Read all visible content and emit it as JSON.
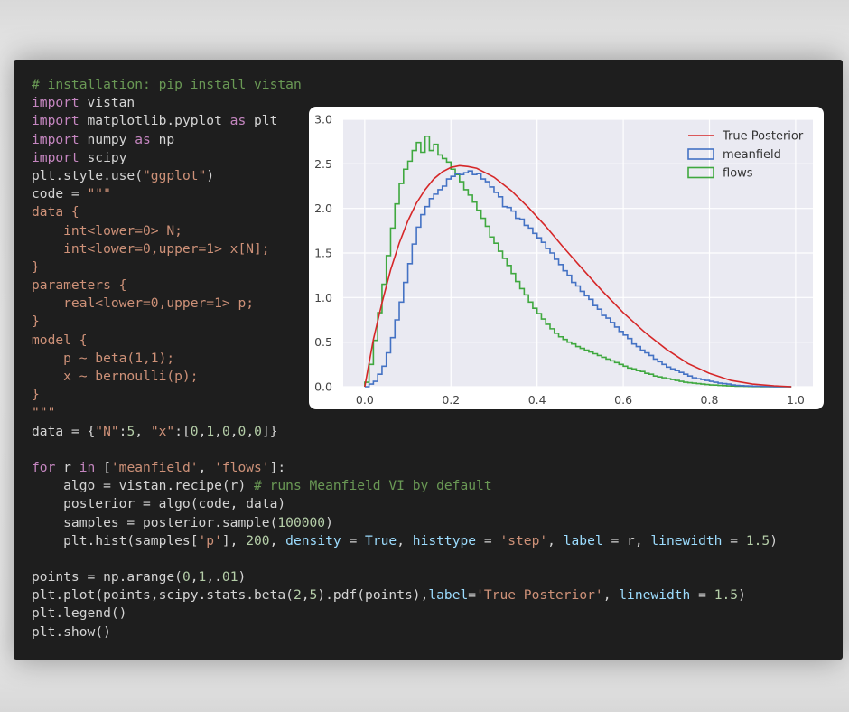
{
  "code_lines": [
    [
      [
        "c",
        "# installation: pip install vistan"
      ]
    ],
    [
      [
        "k",
        "import"
      ],
      [
        "t",
        " vistan"
      ]
    ],
    [
      [
        "k",
        "import"
      ],
      [
        "t",
        " matplotlib.pyplot "
      ],
      [
        "k",
        "as"
      ],
      [
        "t",
        " plt"
      ]
    ],
    [
      [
        "k",
        "import"
      ],
      [
        "t",
        " numpy "
      ],
      [
        "k",
        "as"
      ],
      [
        "t",
        " np"
      ]
    ],
    [
      [
        "k",
        "import"
      ],
      [
        "t",
        " scipy"
      ]
    ],
    [
      [
        "t",
        "plt.style.use("
      ],
      [
        "s",
        "\"ggplot\""
      ],
      [
        "t",
        ")"
      ]
    ],
    [
      [
        "t",
        "code = "
      ],
      [
        "s",
        "\"\"\""
      ]
    ],
    [
      [
        "s",
        "data {"
      ]
    ],
    [
      [
        "s",
        "    int<lower=0> N;"
      ]
    ],
    [
      [
        "s",
        "    int<lower=0,upper=1> x[N];"
      ]
    ],
    [
      [
        "s",
        "}"
      ]
    ],
    [
      [
        "s",
        "parameters {"
      ]
    ],
    [
      [
        "s",
        "    real<lower=0,upper=1> p;"
      ]
    ],
    [
      [
        "s",
        "}"
      ]
    ],
    [
      [
        "s",
        "model {"
      ]
    ],
    [
      [
        "s",
        "    p ~ beta(1,1);"
      ]
    ],
    [
      [
        "s",
        "    x ~ bernoulli(p);"
      ]
    ],
    [
      [
        "s",
        "}"
      ]
    ],
    [
      [
        "s",
        "\"\"\""
      ]
    ],
    [
      [
        "t",
        "data = {"
      ],
      [
        "s",
        "\"N\""
      ],
      [
        "t",
        ":"
      ],
      [
        "n",
        "5"
      ],
      [
        "t",
        ", "
      ],
      [
        "s",
        "\"x\""
      ],
      [
        "t",
        ":["
      ],
      [
        "n",
        "0"
      ],
      [
        "t",
        ","
      ],
      [
        "n",
        "1"
      ],
      [
        "t",
        ","
      ],
      [
        "n",
        "0"
      ],
      [
        "t",
        ","
      ],
      [
        "n",
        "0"
      ],
      [
        "t",
        ","
      ],
      [
        "n",
        "0"
      ],
      [
        "t",
        "]}"
      ]
    ],
    [
      [
        "t",
        ""
      ]
    ],
    [
      [
        "k",
        "for"
      ],
      [
        "t",
        " r "
      ],
      [
        "k",
        "in"
      ],
      [
        "t",
        " ["
      ],
      [
        "s",
        "'meanfield'"
      ],
      [
        "t",
        ", "
      ],
      [
        "s",
        "'flows'"
      ],
      [
        "t",
        "]:"
      ]
    ],
    [
      [
        "t",
        "    algo = vistan.recipe(r) "
      ],
      [
        "c",
        "# runs Meanfield VI by default"
      ]
    ],
    [
      [
        "t",
        "    posterior = algo(code, data)"
      ]
    ],
    [
      [
        "t",
        "    samples = posterior.sample("
      ],
      [
        "n",
        "100000"
      ],
      [
        "t",
        ")"
      ]
    ],
    [
      [
        "t",
        "    plt.hist(samples["
      ],
      [
        "s",
        "'p'"
      ],
      [
        "t",
        "], "
      ],
      [
        "n",
        "200"
      ],
      [
        "t",
        ", "
      ],
      [
        "p",
        "density"
      ],
      [
        "t",
        " = "
      ],
      [
        "p",
        "True"
      ],
      [
        "t",
        ", "
      ],
      [
        "p",
        "histtype"
      ],
      [
        "t",
        " = "
      ],
      [
        "s",
        "'step'"
      ],
      [
        "t",
        ", "
      ],
      [
        "p",
        "label"
      ],
      [
        "t",
        " = r, "
      ],
      [
        "p",
        "linewidth"
      ],
      [
        "t",
        " = "
      ],
      [
        "n",
        "1.5"
      ],
      [
        "t",
        ")"
      ]
    ],
    [
      [
        "t",
        ""
      ]
    ],
    [
      [
        "t",
        "points = np.arange("
      ],
      [
        "n",
        "0"
      ],
      [
        "t",
        ","
      ],
      [
        "n",
        "1"
      ],
      [
        "t",
        ",."
      ],
      [
        "n",
        "01"
      ],
      [
        "t",
        ")"
      ]
    ],
    [
      [
        "t",
        "plt.plot(points,scipy.stats.beta("
      ],
      [
        "n",
        "2"
      ],
      [
        "t",
        ","
      ],
      [
        "n",
        "5"
      ],
      [
        "t",
        ").pdf(points),"
      ],
      [
        "p",
        "label"
      ],
      [
        "t",
        "="
      ],
      [
        "s",
        "'True Posterior'"
      ],
      [
        "t",
        ", "
      ],
      [
        "p",
        "linewidth"
      ],
      [
        "t",
        " = "
      ],
      [
        "n",
        "1.5"
      ],
      [
        "t",
        ")"
      ]
    ],
    [
      [
        "t",
        "plt.legend()"
      ]
    ],
    [
      [
        "t",
        "plt.show()"
      ]
    ]
  ],
  "chart_data": {
    "type": "line",
    "x_ticks": [
      "0.0",
      "0.2",
      "0.4",
      "0.6",
      "0.8",
      "1.0"
    ],
    "y_ticks": [
      "0.0",
      "0.5",
      "1.0",
      "1.5",
      "2.0",
      "2.5",
      "3.0"
    ],
    "xlim": [
      -0.05,
      1.04
    ],
    "ylim": [
      0,
      3.0
    ],
    "grid": true,
    "legend_position": "top-right",
    "series": [
      {
        "name": "True Posterior",
        "style": "line",
        "color": "#d62728",
        "x": [
          0,
          0.02,
          0.04,
          0.06,
          0.08,
          0.1,
          0.12,
          0.14,
          0.16,
          0.18,
          0.2,
          0.22,
          0.24,
          0.26,
          0.28,
          0.3,
          0.34,
          0.38,
          0.42,
          0.46,
          0.5,
          0.55,
          0.6,
          0.65,
          0.7,
          0.75,
          0.8,
          0.85,
          0.9,
          0.95,
          0.99
        ],
        "y": [
          0,
          0.53,
          0.94,
          1.31,
          1.61,
          1.86,
          2.06,
          2.21,
          2.33,
          2.41,
          2.46,
          2.48,
          2.47,
          2.45,
          2.4,
          2.35,
          2.2,
          2.01,
          1.8,
          1.57,
          1.35,
          1.08,
          0.83,
          0.61,
          0.42,
          0.26,
          0.15,
          0.07,
          0.03,
          0.01,
          0.0
        ]
      },
      {
        "name": "meanfield",
        "style": "step",
        "color": "#4472c4",
        "x": [
          0.0,
          0.01,
          0.02,
          0.03,
          0.04,
          0.05,
          0.06,
          0.07,
          0.08,
          0.09,
          0.1,
          0.11,
          0.12,
          0.13,
          0.14,
          0.15,
          0.16,
          0.17,
          0.18,
          0.19,
          0.2,
          0.21,
          0.22,
          0.23,
          0.24,
          0.25,
          0.26,
          0.27,
          0.28,
          0.29,
          0.3,
          0.31,
          0.32,
          0.33,
          0.34,
          0.35,
          0.36,
          0.37,
          0.38,
          0.39,
          0.4,
          0.41,
          0.42,
          0.43,
          0.44,
          0.45,
          0.46,
          0.47,
          0.48,
          0.49,
          0.5,
          0.51,
          0.52,
          0.53,
          0.54,
          0.55,
          0.56,
          0.57,
          0.58,
          0.59,
          0.6,
          0.61,
          0.62,
          0.63,
          0.64,
          0.65,
          0.66,
          0.67,
          0.68,
          0.69,
          0.7,
          0.71,
          0.72,
          0.73,
          0.74,
          0.75,
          0.76,
          0.77,
          0.78,
          0.79,
          0.8,
          0.81,
          0.82,
          0.83,
          0.84,
          0.85,
          0.86,
          0.87,
          0.88,
          0.89,
          0.9,
          0.91,
          0.92,
          0.93,
          0.94,
          0.95,
          0.96,
          0.97,
          0.98
        ],
        "y": [
          0.0,
          0.03,
          0.06,
          0.14,
          0.23,
          0.38,
          0.55,
          0.75,
          0.95,
          1.17,
          1.38,
          1.6,
          1.79,
          1.93,
          2.02,
          2.11,
          2.16,
          2.21,
          2.25,
          2.33,
          2.36,
          2.39,
          2.38,
          2.4,
          2.42,
          2.38,
          2.39,
          2.33,
          2.3,
          2.24,
          2.18,
          2.13,
          2.02,
          2.01,
          1.97,
          1.89,
          1.88,
          1.81,
          1.78,
          1.72,
          1.67,
          1.62,
          1.55,
          1.5,
          1.43,
          1.37,
          1.3,
          1.25,
          1.17,
          1.13,
          1.07,
          1.02,
          0.98,
          0.91,
          0.87,
          0.8,
          0.77,
          0.72,
          0.67,
          0.62,
          0.58,
          0.54,
          0.48,
          0.45,
          0.41,
          0.38,
          0.35,
          0.31,
          0.28,
          0.25,
          0.22,
          0.2,
          0.18,
          0.16,
          0.14,
          0.12,
          0.1,
          0.09,
          0.08,
          0.07,
          0.06,
          0.05,
          0.04,
          0.035,
          0.03,
          0.02,
          0.015,
          0.012,
          0.01,
          0.008,
          0.006,
          0.005,
          0.004,
          0.003,
          0.002,
          0.001,
          0.001,
          0.0005,
          0.0
        ]
      },
      {
        "name": "flows",
        "style": "step",
        "color": "#3fa83f",
        "x": [
          0.0,
          0.01,
          0.02,
          0.03,
          0.04,
          0.05,
          0.06,
          0.07,
          0.08,
          0.09,
          0.1,
          0.11,
          0.12,
          0.13,
          0.14,
          0.15,
          0.16,
          0.17,
          0.18,
          0.19,
          0.2,
          0.21,
          0.22,
          0.23,
          0.24,
          0.25,
          0.26,
          0.27,
          0.28,
          0.29,
          0.3,
          0.31,
          0.32,
          0.33,
          0.34,
          0.35,
          0.36,
          0.37,
          0.38,
          0.39,
          0.4,
          0.41,
          0.42,
          0.43,
          0.44,
          0.45,
          0.46,
          0.47,
          0.48,
          0.49,
          0.5,
          0.51,
          0.52,
          0.53,
          0.54,
          0.55,
          0.56,
          0.57,
          0.58,
          0.59,
          0.6,
          0.61,
          0.62,
          0.63,
          0.64,
          0.65,
          0.66,
          0.67,
          0.68,
          0.69,
          0.7,
          0.71,
          0.72,
          0.73,
          0.74,
          0.75,
          0.76,
          0.77,
          0.78,
          0.79,
          0.8,
          0.81,
          0.82,
          0.83,
          0.84,
          0.85,
          0.86,
          0.87,
          0.88,
          0.89,
          0.9,
          0.91,
          0.92,
          0.93,
          0.94,
          0.95,
          0.96,
          0.97,
          0.98
        ],
        "y": [
          0.05,
          0.25,
          0.52,
          0.83,
          1.15,
          1.47,
          1.78,
          2.05,
          2.28,
          2.44,
          2.53,
          2.65,
          2.74,
          2.63,
          2.81,
          2.65,
          2.72,
          2.6,
          2.56,
          2.52,
          2.44,
          2.38,
          2.3,
          2.21,
          2.15,
          2.07,
          1.98,
          1.89,
          1.8,
          1.68,
          1.61,
          1.52,
          1.44,
          1.36,
          1.27,
          1.18,
          1.1,
          1.03,
          0.95,
          0.88,
          0.82,
          0.76,
          0.7,
          0.65,
          0.6,
          0.56,
          0.53,
          0.5,
          0.48,
          0.45,
          0.43,
          0.41,
          0.39,
          0.37,
          0.35,
          0.33,
          0.31,
          0.29,
          0.27,
          0.25,
          0.23,
          0.21,
          0.2,
          0.18,
          0.17,
          0.15,
          0.14,
          0.12,
          0.11,
          0.1,
          0.09,
          0.08,
          0.07,
          0.06,
          0.05,
          0.045,
          0.04,
          0.035,
          0.03,
          0.025,
          0.02,
          0.018,
          0.015,
          0.012,
          0.01,
          0.008,
          0.006,
          0.005,
          0.004,
          0.003,
          0.002,
          0.002,
          0.001,
          0.001,
          0.0008,
          0.0005,
          0.0003,
          0.0001,
          0.0
        ]
      }
    ]
  }
}
